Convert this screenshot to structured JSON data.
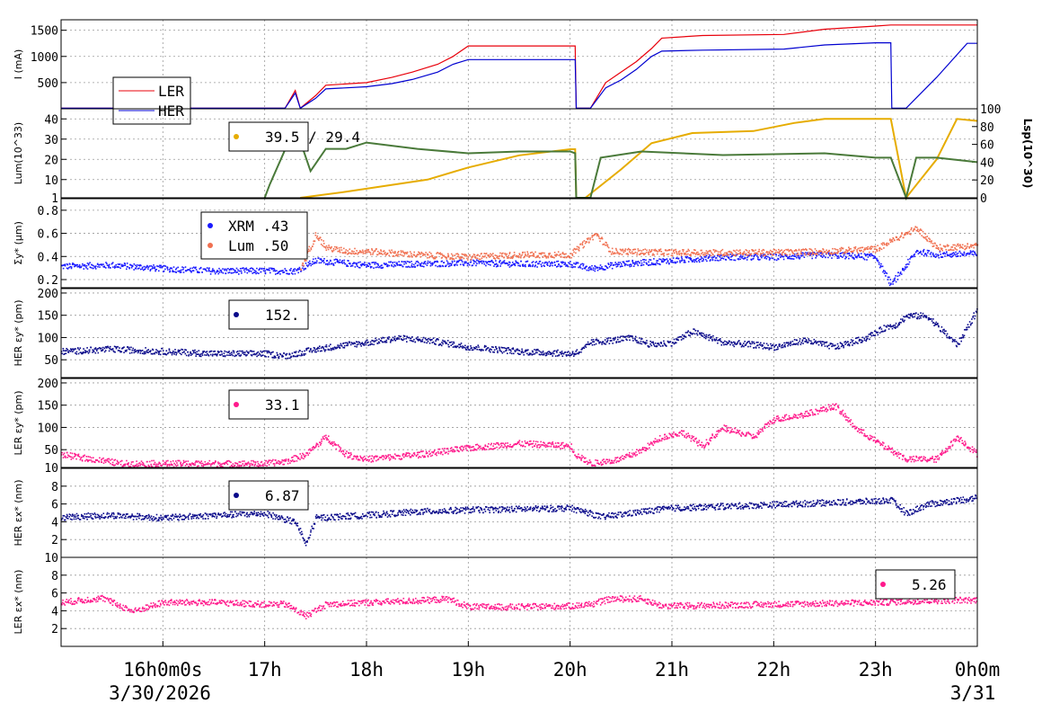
{
  "chart_data": [
    {
      "type": "line",
      "panel": "beam-current",
      "ylabel": "I (mA)",
      "yticks": [
        "500",
        "1000",
        "1500"
      ],
      "ylim": [
        0,
        1700
      ],
      "x_hours": [
        15,
        0
      ],
      "legend": [
        {
          "name": "LER",
          "color": "#e8000b"
        },
        {
          "name": "HER",
          "color": "#0000d0"
        }
      ],
      "series": [
        {
          "name": "LER",
          "color": "#e8000b",
          "x": [
            15.0,
            17.2,
            17.3,
            17.35,
            17.5,
            17.6,
            18.0,
            18.25,
            18.45,
            18.7,
            18.85,
            19.0,
            20.05,
            20.06,
            20.2,
            20.35,
            20.5,
            20.65,
            20.8,
            20.9,
            21.3,
            22.1,
            22.5,
            23.0,
            23.15,
            24.0
          ],
          "y": [
            10,
            10,
            350,
            10,
            250,
            450,
            500,
            600,
            700,
            850,
            1000,
            1200,
            1200,
            10,
            10,
            500,
            700,
            900,
            1150,
            1350,
            1400,
            1420,
            1520,
            1580,
            1600,
            1600
          ]
        },
        {
          "name": "HER",
          "color": "#0000d0",
          "x": [
            15.0,
            17.2,
            17.3,
            17.35,
            17.5,
            17.6,
            18.0,
            18.25,
            18.45,
            18.7,
            18.85,
            19.0,
            20.05,
            20.06,
            20.2,
            20.35,
            20.5,
            20.65,
            20.8,
            20.9,
            21.3,
            22.1,
            22.5,
            23.0,
            23.15,
            23.16,
            23.3,
            23.6,
            23.9,
            24.0
          ],
          "y": [
            10,
            10,
            300,
            10,
            200,
            380,
            420,
            480,
            560,
            700,
            850,
            940,
            940,
            10,
            10,
            400,
            550,
            750,
            1000,
            1100,
            1120,
            1140,
            1220,
            1260,
            1260,
            10,
            10,
            600,
            1250,
            1250
          ]
        }
      ]
    },
    {
      "type": "line",
      "panel": "luminosity",
      "ylabel": "Lum(10^33)",
      "yticks": [
        "1",
        "10",
        "20",
        "30",
        "40"
      ],
      "ylim": [
        1,
        45
      ],
      "y2label": "Lsp(10^30)",
      "y2ticks": [
        "0",
        "20",
        "40",
        "60",
        "80",
        "100"
      ],
      "y2lim": [
        0,
        100
      ],
      "legend_value": "39.5 / 29.4",
      "series": [
        {
          "name": "Lum",
          "color": "#e6ac00",
          "x": [
            17.35,
            17.8,
            18.2,
            18.6,
            19.0,
            19.5,
            20.0,
            20.05,
            20.06,
            20.15,
            20.5,
            20.8,
            21.2,
            21.8,
            22.2,
            22.5,
            23.0,
            23.15,
            23.3,
            23.6,
            23.8,
            24.0
          ],
          "y": [
            1,
            4,
            7,
            10,
            16,
            22,
            25,
            25,
            1,
            1,
            15,
            28,
            33,
            34,
            38,
            40,
            40,
            40,
            1,
            20,
            40,
            39
          ]
        },
        {
          "name": "Lsp",
          "color": "#4a7a3a",
          "axis": "y2",
          "x": [
            17.0,
            17.05,
            17.3,
            17.45,
            17.6,
            17.8,
            18.0,
            18.5,
            19.0,
            19.5,
            20.0,
            20.05,
            20.06,
            20.2,
            20.3,
            20.7,
            21.5,
            22.5,
            23.0,
            23.15,
            23.3,
            23.4,
            23.6,
            24.0
          ],
          "y": [
            0,
            15,
            80,
            30,
            55,
            55,
            62,
            55,
            50,
            52,
            52,
            50,
            0,
            0,
            45,
            52,
            48,
            50,
            45,
            45,
            0,
            45,
            45,
            40
          ]
        }
      ]
    },
    {
      "type": "scatter",
      "panel": "sigma-y",
      "ylabel": "Σy* (µm)",
      "yticks": [
        "0.2",
        "0.4",
        "0.6",
        "0.8"
      ],
      "ylim": [
        0.13,
        0.9
      ],
      "legend": [
        {
          "name": "XRM",
          "value": ".43",
          "color": "#1a1aff"
        },
        {
          "name": "Lum",
          "value": ".50",
          "color": "#f07050"
        }
      ],
      "series": [
        {
          "name": "XRM",
          "color": "#1a1aff",
          "x": [
            15.0,
            15.5,
            16.0,
            16.5,
            17.0,
            17.3,
            17.5,
            18.0,
            18.5,
            19.0,
            19.5,
            20.0,
            20.2,
            20.5,
            21.0,
            21.5,
            22.0,
            22.5,
            23.0,
            23.15,
            23.4,
            23.6,
            24.0
          ],
          "y": [
            0.32,
            0.33,
            0.3,
            0.28,
            0.28,
            0.28,
            0.37,
            0.33,
            0.34,
            0.35,
            0.34,
            0.34,
            0.3,
            0.34,
            0.37,
            0.4,
            0.4,
            0.42,
            0.4,
            0.16,
            0.45,
            0.42,
            0.43
          ]
        },
        {
          "name": "Lum",
          "color": "#f07050",
          "x": [
            17.35,
            17.5,
            17.6,
            17.8,
            18.0,
            18.5,
            19.0,
            19.5,
            20.0,
            20.25,
            20.4,
            21.0,
            21.5,
            22.0,
            22.5,
            23.0,
            23.4,
            23.6,
            24.0
          ],
          "y": [
            0.3,
            0.6,
            0.48,
            0.45,
            0.45,
            0.42,
            0.4,
            0.42,
            0.42,
            0.6,
            0.45,
            0.44,
            0.44,
            0.44,
            0.45,
            0.47,
            0.65,
            0.48,
            0.5
          ]
        }
      ]
    },
    {
      "type": "scatter",
      "panel": "her-emittance-y",
      "ylabel": "HER εy* (pm)",
      "yticks": [
        "50",
        "100",
        "150",
        "200"
      ],
      "ylim": [
        10,
        210
      ],
      "legend_value": "152.",
      "series": [
        {
          "name": "HER",
          "color": "#0a0a8a",
          "x": [
            15.0,
            15.5,
            16.0,
            16.5,
            17.0,
            17.2,
            17.3,
            17.5,
            17.8,
            18.0,
            18.3,
            18.6,
            19.0,
            19.5,
            20.0,
            20.1,
            20.2,
            20.4,
            20.6,
            20.8,
            21.0,
            21.2,
            21.5,
            21.8,
            22.0,
            22.3,
            22.6,
            22.9,
            23.1,
            23.2,
            23.3,
            23.5,
            23.8,
            24.0
          ],
          "y": [
            70,
            75,
            70,
            65,
            65,
            60,
            65,
            75,
            85,
            90,
            100,
            95,
            80,
            70,
            65,
            70,
            90,
            95,
            100,
            85,
            90,
            115,
            90,
            85,
            80,
            95,
            80,
            100,
            125,
            130,
            150,
            150,
            85,
            165
          ]
        }
      ]
    },
    {
      "type": "scatter",
      "panel": "ler-emittance-y",
      "ylabel": "LER εy* (pm)",
      "yticks": [
        "10",
        "50",
        "100",
        "150",
        "200"
      ],
      "ylim": [
        10,
        210
      ],
      "legend_value": "33.1",
      "series": [
        {
          "name": "LER",
          "color": "#ff1a8c",
          "x": [
            15.0,
            15.3,
            15.6,
            16.0,
            16.5,
            17.0,
            17.2,
            17.4,
            17.6,
            17.8,
            18.0,
            18.5,
            19.0,
            19.5,
            20.0,
            20.05,
            20.2,
            20.5,
            20.7,
            20.9,
            21.1,
            21.3,
            21.5,
            21.8,
            22.0,
            22.3,
            22.6,
            22.8,
            23.0,
            23.3,
            23.6,
            23.8,
            24.0
          ],
          "y": [
            40,
            30,
            20,
            20,
            20,
            20,
            25,
            40,
            80,
            40,
            30,
            40,
            55,
            65,
            60,
            40,
            20,
            30,
            50,
            80,
            90,
            60,
            100,
            80,
            120,
            130,
            150,
            100,
            70,
            30,
            30,
            80,
            40
          ]
        }
      ]
    },
    {
      "type": "scatter",
      "panel": "her-emittance-x",
      "ylabel": "HER εx* (nm)",
      "yticks": [
        "2",
        "4",
        "6",
        "8"
      ],
      "ylim": [
        0,
        10
      ],
      "legend_value": "6.87",
      "series": [
        {
          "name": "HER",
          "color": "#0a0a8a",
          "x": [
            15.0,
            15.5,
            16.0,
            16.5,
            17.0,
            17.3,
            17.4,
            17.5,
            17.8,
            18.0,
            18.5,
            19.0,
            19.5,
            20.0,
            20.2,
            20.3,
            20.7,
            21.0,
            21.5,
            22.0,
            22.5,
            23.0,
            23.15,
            23.3,
            23.5,
            24.0
          ],
          "y": [
            4.6,
            4.8,
            4.5,
            4.8,
            5.0,
            4.0,
            1.5,
            4.5,
            4.7,
            4.8,
            5.2,
            5.4,
            5.5,
            5.6,
            5.0,
            4.6,
            5.2,
            5.6,
            5.8,
            6.0,
            6.2,
            6.4,
            6.5,
            5.0,
            6.0,
            6.8
          ]
        }
      ]
    },
    {
      "type": "scatter",
      "panel": "ler-emittance-x",
      "ylabel": "LER εx* (nm)",
      "yticks": [
        "2",
        "4",
        "6",
        "8",
        "10"
      ],
      "ylim": [
        0,
        10
      ],
      "legend_value": "5.26",
      "series": [
        {
          "name": "LER",
          "color": "#ff1a8c",
          "x": [
            15.0,
            15.4,
            15.7,
            16.0,
            16.5,
            17.0,
            17.2,
            17.4,
            17.6,
            18.0,
            18.5,
            18.8,
            19.0,
            19.5,
            20.0,
            20.2,
            20.4,
            20.7,
            20.9,
            21.5,
            22.0,
            22.5,
            23.0,
            23.5,
            24.0
          ],
          "y": [
            5.0,
            5.5,
            4.0,
            5.0,
            5.0,
            4.8,
            4.8,
            3.5,
            4.8,
            5.0,
            5.2,
            5.4,
            4.5,
            4.5,
            4.6,
            4.8,
            5.4,
            5.4,
            4.6,
            4.7,
            4.8,
            4.9,
            5.0,
            5.2,
            5.3
          ]
        }
      ]
    }
  ],
  "x_axis": {
    "ticks": [
      {
        "hour": 16,
        "label": "16h0m0s"
      },
      {
        "hour": 17,
        "label": "17h"
      },
      {
        "hour": 18,
        "label": "18h"
      },
      {
        "hour": 19,
        "label": "19h"
      },
      {
        "hour": 20,
        "label": "20h"
      },
      {
        "hour": 21,
        "label": "21h"
      },
      {
        "hour": 22,
        "label": "22h"
      },
      {
        "hour": 23,
        "label": "23h"
      },
      {
        "hour": 24,
        "label": "0h0m"
      }
    ],
    "date_left": "3/30/2026",
    "date_right": "3/31",
    "range_hours": [
      15.0,
      24.0
    ]
  }
}
